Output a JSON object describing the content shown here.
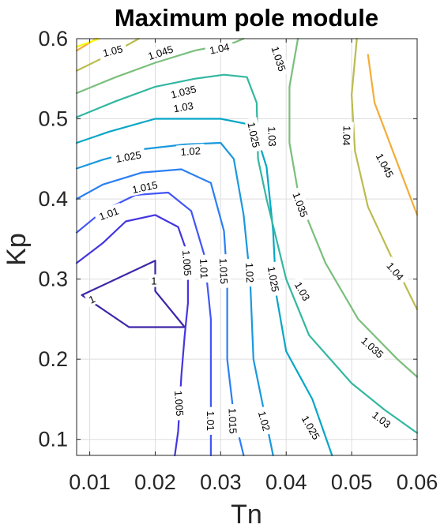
{
  "chart_data": {
    "type": "contour",
    "title": "Maximum pole module",
    "xlabel": "Tn",
    "ylabel": "Kp",
    "xlim": [
      0.008,
      0.06
    ],
    "ylim": [
      0.08,
      0.6
    ],
    "xticks": [
      "0.01",
      "0.02",
      "0.03",
      "0.04",
      "0.05",
      "0.06"
    ],
    "yticks": [
      "0.1",
      "0.2",
      "0.3",
      "0.4",
      "0.5",
      "0.6"
    ],
    "grid": true,
    "colormap": "parula",
    "levels": [
      {
        "label": "1",
        "color": "#3d26a8",
        "lines": [
          [
            [
              0.0088,
              0.28
            ],
            [
              0.02,
              0.323
            ],
            [
              0.02,
              0.285
            ],
            [
              0.0245,
              0.24
            ],
            [
              0.016,
              0.24
            ],
            [
              0.0088,
              0.28
            ]
          ]
        ]
      },
      {
        "label": "1.005",
        "color": "#4435e0",
        "lines": [
          [
            [
              0.008,
              0.32
            ],
            [
              0.012,
              0.345
            ],
            [
              0.0155,
              0.372
            ],
            [
              0.02,
              0.38
            ],
            [
              0.0235,
              0.365
            ],
            [
              0.025,
              0.33
            ],
            [
              0.025,
              0.27
            ],
            [
              0.0245,
              0.23
            ],
            [
              0.024,
              0.18
            ],
            [
              0.0235,
              0.11
            ],
            [
              0.023,
              0.08
            ]
          ]
        ]
      },
      {
        "label": "1.01",
        "color": "#4255f5",
        "lines": [
          [
            [
              0.008,
              0.358
            ],
            [
              0.012,
              0.385
            ],
            [
              0.017,
              0.405
            ],
            [
              0.022,
              0.408
            ],
            [
              0.0255,
              0.385
            ],
            [
              0.0275,
              0.33
            ],
            [
              0.0285,
              0.25
            ],
            [
              0.0285,
              0.16
            ],
            [
              0.0285,
              0.08
            ]
          ]
        ]
      },
      {
        "label": "1.015",
        "color": "#2b7ff3",
        "lines": [
          [
            [
              0.008,
              0.4
            ],
            [
              0.012,
              0.418
            ],
            [
              0.018,
              0.433
            ],
            [
              0.024,
              0.437
            ],
            [
              0.0285,
              0.42
            ],
            [
              0.0305,
              0.36
            ],
            [
              0.031,
              0.3
            ],
            [
              0.031,
              0.2
            ],
            [
              0.032,
              0.13
            ],
            [
              0.0335,
              0.08
            ]
          ]
        ]
      },
      {
        "label": "1.02",
        "color": "#1a98de",
        "lines": [
          [
            [
              0.008,
              0.438
            ],
            [
              0.012,
              0.449
            ],
            [
              0.018,
              0.462
            ],
            [
              0.0245,
              0.468
            ],
            [
              0.03,
              0.47
            ],
            [
              0.032,
              0.45
            ],
            [
              0.0335,
              0.38
            ],
            [
              0.0345,
              0.3
            ],
            [
              0.035,
              0.2
            ],
            [
              0.0365,
              0.14
            ],
            [
              0.038,
              0.08
            ]
          ]
        ]
      },
      {
        "label": "1.025",
        "color": "#06a7c6",
        "lines": [
          [
            [
              0.008,
              0.47
            ],
            [
              0.013,
              0.484
            ],
            [
              0.02,
              0.5
            ],
            [
              0.026,
              0.5
            ],
            [
              0.03,
              0.5
            ],
            [
              0.035,
              0.492
            ],
            [
              0.037,
              0.44
            ],
            [
              0.038,
              0.36
            ],
            [
              0.0385,
              0.28
            ],
            [
              0.04,
              0.21
            ],
            [
              0.044,
              0.15
            ],
            [
              0.047,
              0.08
            ]
          ]
        ]
      },
      {
        "label": "1.03",
        "color": "#33b7a0",
        "lines": [
          [
            [
              0.008,
              0.502
            ],
            [
              0.014,
              0.522
            ],
            [
              0.02,
              0.54
            ],
            [
              0.026,
              0.55
            ],
            [
              0.0305,
              0.555
            ],
            [
              0.034,
              0.552
            ],
            [
              0.0355,
              0.52
            ],
            [
              0.0357,
              0.45
            ],
            [
              0.037,
              0.4
            ],
            [
              0.04,
              0.3
            ],
            [
              0.0435,
              0.23
            ],
            [
              0.05,
              0.17
            ],
            [
              0.055,
              0.137
            ],
            [
              0.06,
              0.108
            ]
          ]
        ]
      },
      {
        "label": "1.035",
        "color": "#7abf7c",
        "lines": [
          [
            [
              0.008,
              0.532
            ],
            [
              0.014,
              0.552
            ],
            [
              0.02,
              0.57
            ],
            [
              0.026,
              0.585
            ],
            [
              0.032,
              0.595
            ],
            [
              0.0335,
              0.6
            ]
          ],
          [
            [
              0.0418,
              0.6
            ],
            [
              0.0405,
              0.54
            ],
            [
              0.0405,
              0.47
            ],
            [
              0.042,
              0.4
            ],
            [
              0.046,
              0.32
            ],
            [
              0.051,
              0.25
            ],
            [
              0.057,
              0.2
            ],
            [
              0.06,
              0.178
            ]
          ]
        ]
      },
      {
        "label": "1.04",
        "color": "#bbbc4f",
        "lines": [
          [
            [
              0.008,
              0.56
            ],
            [
              0.0135,
              0.582
            ],
            [
              0.0175,
              0.6
            ]
          ],
          [
            [
              0.0508,
              0.6
            ],
            [
              0.05,
              0.53
            ],
            [
              0.0505,
              0.46
            ],
            [
              0.0525,
              0.39
            ],
            [
              0.0565,
              0.32
            ],
            [
              0.06,
              0.262
            ]
          ]
        ]
      },
      {
        "label": "1.045",
        "color": "#f3ad38",
        "lines": [
          [
            [
              0.008,
              0.585
            ],
            [
              0.011,
              0.6
            ]
          ],
          [
            [
              0.0525,
              0.58
            ],
            [
              0.0535,
              0.52
            ],
            [
              0.0565,
              0.455
            ],
            [
              0.06,
              0.38
            ]
          ]
        ]
      },
      {
        "label": "1.05",
        "color": "#f9fb14",
        "lines": [
          [
            [
              0.008,
              0.59
            ],
            [
              0.0115,
              0.6
            ]
          ]
        ]
      }
    ],
    "contour_labels": [
      {
        "text": "1.05",
        "x": 0.0135,
        "y": 0.585,
        "angle": -14
      },
      {
        "text": "1.045",
        "x": 0.0208,
        "y": 0.583,
        "angle": -18
      },
      {
        "text": "1.04",
        "x": 0.0298,
        "y": 0.588,
        "angle": -12
      },
      {
        "text": "1.035",
        "x": 0.0389,
        "y": 0.575,
        "angle": 72
      },
      {
        "text": "1.035",
        "x": 0.0243,
        "y": 0.534,
        "angle": -14
      },
      {
        "text": "1.03",
        "x": 0.0243,
        "y": 0.515,
        "angle": -10
      },
      {
        "text": "1.025",
        "x": 0.0351,
        "y": 0.48,
        "angle": 78
      },
      {
        "text": "1.03",
        "x": 0.0379,
        "y": 0.478,
        "angle": 88
      },
      {
        "text": "1.04",
        "x": 0.0493,
        "y": 0.479,
        "angle": 92
      },
      {
        "text": "1.045",
        "x": 0.0551,
        "y": 0.442,
        "angle": 62
      },
      {
        "text": "1.025",
        "x": 0.0159,
        "y": 0.453,
        "angle": -10
      },
      {
        "text": "1.02",
        "x": 0.0254,
        "y": 0.46,
        "angle": -4
      },
      {
        "text": "1.015",
        "x": 0.0184,
        "y": 0.415,
        "angle": -12
      },
      {
        "text": "1.035",
        "x": 0.0422,
        "y": 0.393,
        "angle": 70
      },
      {
        "text": "1.01",
        "x": 0.0129,
        "y": 0.382,
        "angle": -20
      },
      {
        "text": "1.005",
        "x": 0.0249,
        "y": 0.32,
        "angle": 86
      },
      {
        "text": "1.01",
        "x": 0.0275,
        "y": 0.313,
        "angle": 88
      },
      {
        "text": "1.015",
        "x": 0.0305,
        "y": 0.31,
        "angle": 88
      },
      {
        "text": "1.02",
        "x": 0.0345,
        "y": 0.308,
        "angle": 88
      },
      {
        "text": "1.025",
        "x": 0.0381,
        "y": 0.3,
        "angle": 80
      },
      {
        "text": "1",
        "x": 0.0198,
        "y": 0.298,
        "angle": 0
      },
      {
        "text": "1.04",
        "x": 0.0567,
        "y": 0.31,
        "angle": 50
      },
      {
        "text": "1",
        "x": 0.0103,
        "y": 0.275,
        "angle": -25
      },
      {
        "text": "1.03",
        "x": 0.0425,
        "y": 0.285,
        "angle": 60
      },
      {
        "text": "1.035",
        "x": 0.0532,
        "y": 0.215,
        "angle": 42
      },
      {
        "text": "1.005",
        "x": 0.0237,
        "y": 0.145,
        "angle": 86
      },
      {
        "text": "1.01",
        "x": 0.0285,
        "y": 0.123,
        "angle": 90
      },
      {
        "text": "1.015",
        "x": 0.0319,
        "y": 0.123,
        "angle": 88
      },
      {
        "text": "1.02",
        "x": 0.0367,
        "y": 0.123,
        "angle": 75
      },
      {
        "text": "1.03",
        "x": 0.0546,
        "y": 0.125,
        "angle": 38
      },
      {
        "text": "1.025",
        "x": 0.0438,
        "y": 0.115,
        "angle": 60
      }
    ]
  }
}
